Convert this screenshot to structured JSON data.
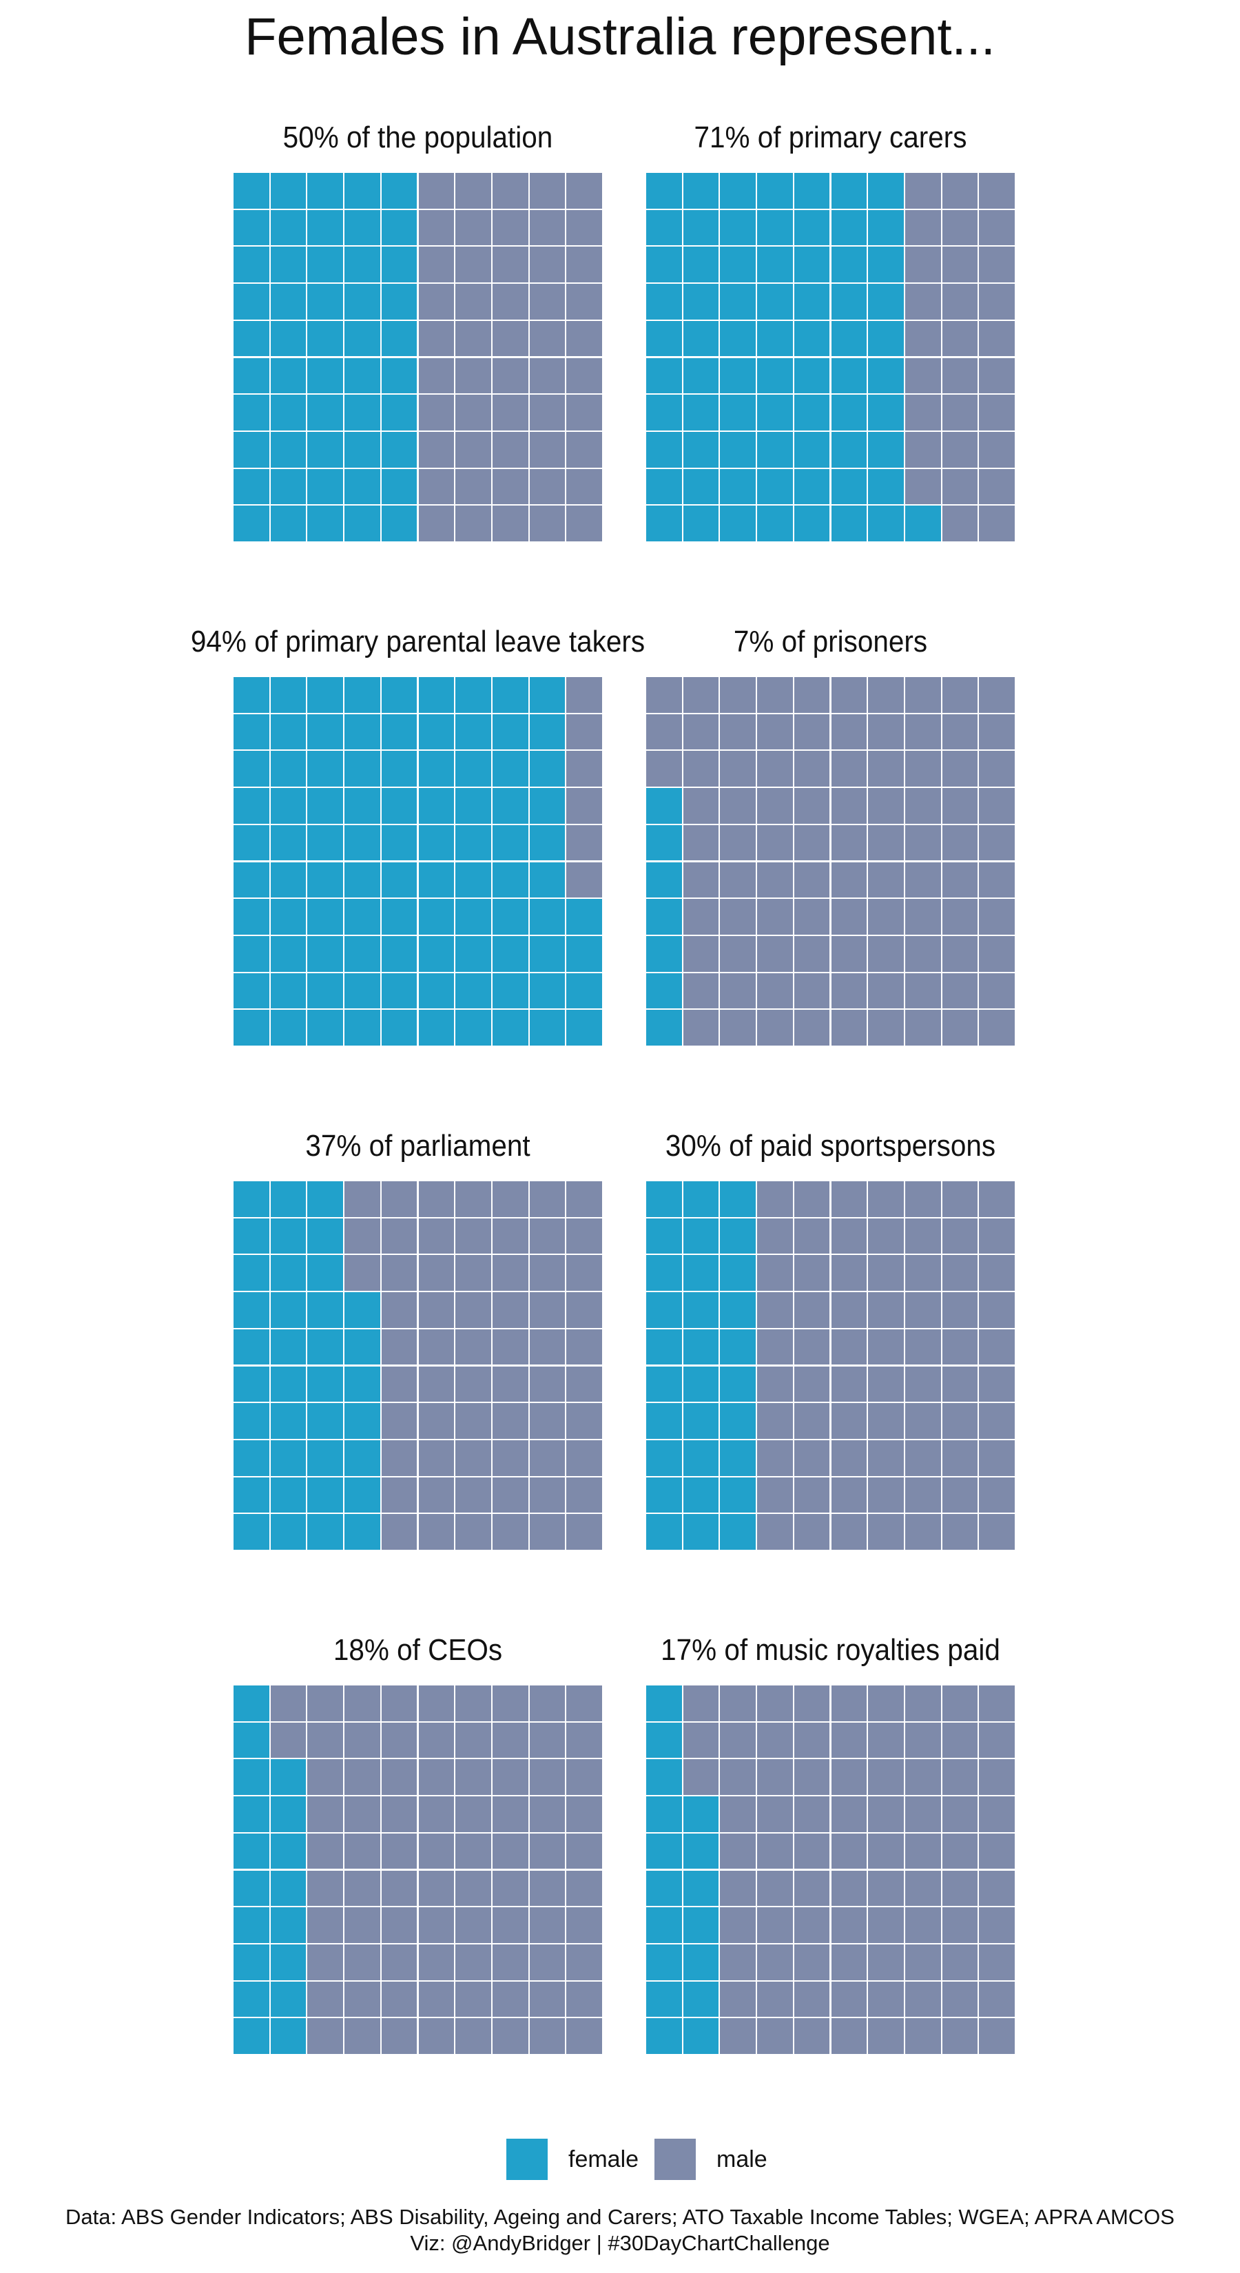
{
  "title": "Females in Australia represent...",
  "colors": {
    "female": "#21A1CB",
    "male": "#7E8AAA",
    "gridline": "#ffffff"
  },
  "legend": {
    "female": "female",
    "male": "male"
  },
  "caption": {
    "line1": "Data: ABS Gender Indicators; ABS Disability, Ageing and Carers; ATO Taxable Income Tables; WGEA; APRA AMCOS",
    "line2": "Viz: @AndyBridger | #30DayChartChallenge"
  },
  "chart_data": [
    {
      "type": "waffle",
      "title": "50% of the population",
      "female_percent": 50,
      "male_percent": 50
    },
    {
      "type": "waffle",
      "title": "71% of primary carers",
      "female_percent": 71,
      "male_percent": 29
    },
    {
      "type": "waffle",
      "title": "94% of primary parental leave takers",
      "female_percent": 94,
      "male_percent": 6
    },
    {
      "type": "waffle",
      "title": "7% of prisoners",
      "female_percent": 7,
      "male_percent": 93
    },
    {
      "type": "waffle",
      "title": "37% of parliament",
      "female_percent": 37,
      "male_percent": 63
    },
    {
      "type": "waffle",
      "title": "30% of paid sportspersons",
      "female_percent": 30,
      "male_percent": 70
    },
    {
      "type": "waffle",
      "title": "18% of CEOs",
      "female_percent": 18,
      "male_percent": 82
    },
    {
      "type": "waffle",
      "title": "17% of music royalties paid",
      "female_percent": 17,
      "male_percent": 83
    }
  ]
}
